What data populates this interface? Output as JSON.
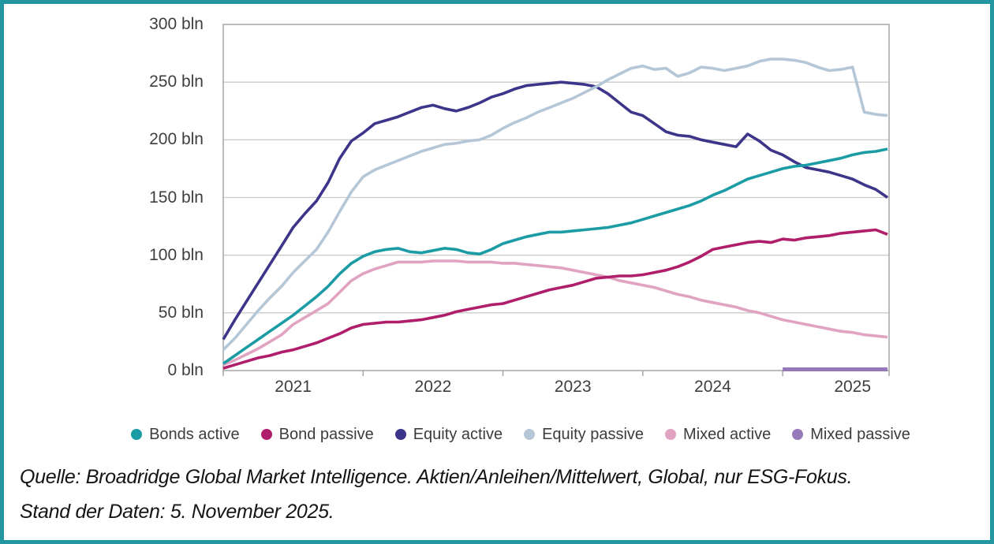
{
  "frame": {
    "border_color": "#2396A2",
    "background": "#FFFFFF"
  },
  "colors": {
    "grid": "#CBCBCB",
    "axis": "#A6A6A6",
    "text": "#3E3E3D"
  },
  "caption": {
    "line1": "Quelle: Broadridge Global Market Intelligence. Aktien/Anleihen/Mittelwert, Global, nur ESG-Fokus.",
    "line2": "Stand der Daten: 5. November 2025."
  },
  "chart_data": {
    "type": "line",
    "title": "",
    "unit": "bln",
    "ylim": [
      0,
      300
    ],
    "grid": true,
    "legend_position": "bottom",
    "yticks": [
      {
        "label": "300 bln",
        "value": 300
      },
      {
        "label": "250 bln",
        "value": 250
      },
      {
        "label": "200 bln",
        "value": 200
      },
      {
        "label": "150 bln",
        "value": 150
      },
      {
        "label": "100 bln",
        "value": 100
      },
      {
        "label": "50 bln",
        "value": 50
      },
      {
        "label": "0 bln",
        "value": 0
      }
    ],
    "xticks": [
      "2021",
      "2022",
      "2023",
      "2024",
      "2025"
    ],
    "x": [
      "2021-01",
      "2021-02",
      "2021-03",
      "2021-04",
      "2021-05",
      "2021-06",
      "2021-07",
      "2021-08",
      "2021-09",
      "2021-10",
      "2021-11",
      "2021-12",
      "2022-01",
      "2022-02",
      "2022-03",
      "2022-04",
      "2022-05",
      "2022-06",
      "2022-07",
      "2022-08",
      "2022-09",
      "2022-10",
      "2022-11",
      "2022-12",
      "2023-01",
      "2023-02",
      "2023-03",
      "2023-04",
      "2023-05",
      "2023-06",
      "2023-07",
      "2023-08",
      "2023-09",
      "2023-10",
      "2023-11",
      "2023-12",
      "2024-01",
      "2024-02",
      "2024-03",
      "2024-04",
      "2024-05",
      "2024-06",
      "2024-07",
      "2024-08",
      "2024-09",
      "2024-10",
      "2024-11",
      "2024-12",
      "2025-01",
      "2025-02",
      "2025-03",
      "2025-04",
      "2025-05",
      "2025-06",
      "2025-07",
      "2025-08",
      "2025-09",
      "2025-10"
    ],
    "series": [
      {
        "name": "Bonds active",
        "color": "#1B9CA5",
        "values": [
          6,
          13,
          20,
          27,
          34,
          41,
          48,
          56,
          64,
          73,
          84,
          93,
          99,
          103,
          105,
          106,
          103,
          102,
          104,
          106,
          105,
          102,
          101,
          105,
          110,
          113,
          116,
          118,
          120,
          120,
          121,
          122,
          123,
          124,
          126,
          128,
          131,
          134,
          137,
          140,
          143,
          147,
          152,
          156,
          161,
          166,
          169,
          172,
          175,
          177,
          178,
          180,
          182,
          184,
          187,
          189,
          190,
          192
        ]
      },
      {
        "name": "Bond passive",
        "color": "#B01E6B",
        "values": [
          2,
          5,
          8,
          11,
          13,
          16,
          18,
          21,
          24,
          28,
          32,
          37,
          40,
          41,
          42,
          42,
          43,
          44,
          46,
          48,
          51,
          53,
          55,
          57,
          58,
          61,
          64,
          67,
          70,
          72,
          74,
          77,
          80,
          81,
          82,
          82,
          83,
          85,
          87,
          90,
          94,
          99,
          105,
          107,
          109,
          111,
          112,
          111,
          114,
          113,
          115,
          116,
          117,
          119,
          120,
          121,
          122,
          118
        ]
      },
      {
        "name": "Equity active",
        "color": "#3D3589",
        "values": [
          27,
          44,
          60,
          76,
          92,
          108,
          124,
          136,
          147,
          163,
          184,
          199,
          206,
          214,
          217,
          220,
          224,
          228,
          230,
          227,
          225,
          228,
          232,
          237,
          240,
          244,
          247,
          248,
          249,
          250,
          249,
          248,
          246,
          240,
          232,
          224,
          221,
          214,
          207,
          204,
          203,
          200,
          198,
          196,
          194,
          205,
          199,
          191,
          187,
          181,
          176,
          174,
          172,
          169,
          166,
          161,
          157,
          150
        ]
      },
      {
        "name": "Equity passive",
        "color": "#B5C7D7",
        "values": [
          18,
          28,
          40,
          52,
          63,
          73,
          85,
          95,
          105,
          120,
          138,
          155,
          168,
          174,
          178,
          182,
          186,
          190,
          193,
          196,
          197,
          199,
          200,
          204,
          210,
          215,
          219,
          224,
          228,
          232,
          236,
          241,
          246,
          252,
          257,
          262,
          264,
          261,
          262,
          255,
          258,
          263,
          262,
          260,
          262,
          264,
          268,
          270,
          270,
          269,
          267,
          263,
          260,
          261,
          263,
          224,
          222,
          221
        ]
      },
      {
        "name": "Mixed active",
        "color": "#E0A3C2",
        "values": [
          5,
          9,
          14,
          19,
          25,
          31,
          40,
          46,
          52,
          58,
          68,
          78,
          84,
          88,
          91,
          94,
          94,
          94,
          95,
          95,
          95,
          94,
          94,
          94,
          93,
          93,
          92,
          91,
          90,
          89,
          87,
          85,
          83,
          81,
          78,
          76,
          74,
          72,
          69,
          66,
          64,
          61,
          59,
          57,
          55,
          52,
          50,
          47,
          44,
          42,
          40,
          38,
          36,
          34,
          33,
          31,
          30,
          29
        ]
      },
      {
        "name": "Mixed passive",
        "color": "#9579BB",
        "values": [
          null,
          null,
          null,
          null,
          null,
          null,
          null,
          null,
          null,
          null,
          null,
          null,
          null,
          null,
          null,
          null,
          null,
          null,
          null,
          null,
          null,
          null,
          null,
          null,
          null,
          null,
          null,
          null,
          null,
          null,
          null,
          null,
          null,
          null,
          null,
          null,
          null,
          null,
          null,
          null,
          null,
          null,
          null,
          null,
          null,
          null,
          null,
          null,
          1,
          1,
          1,
          1,
          1,
          1,
          1,
          1,
          1,
          1
        ]
      }
    ]
  }
}
